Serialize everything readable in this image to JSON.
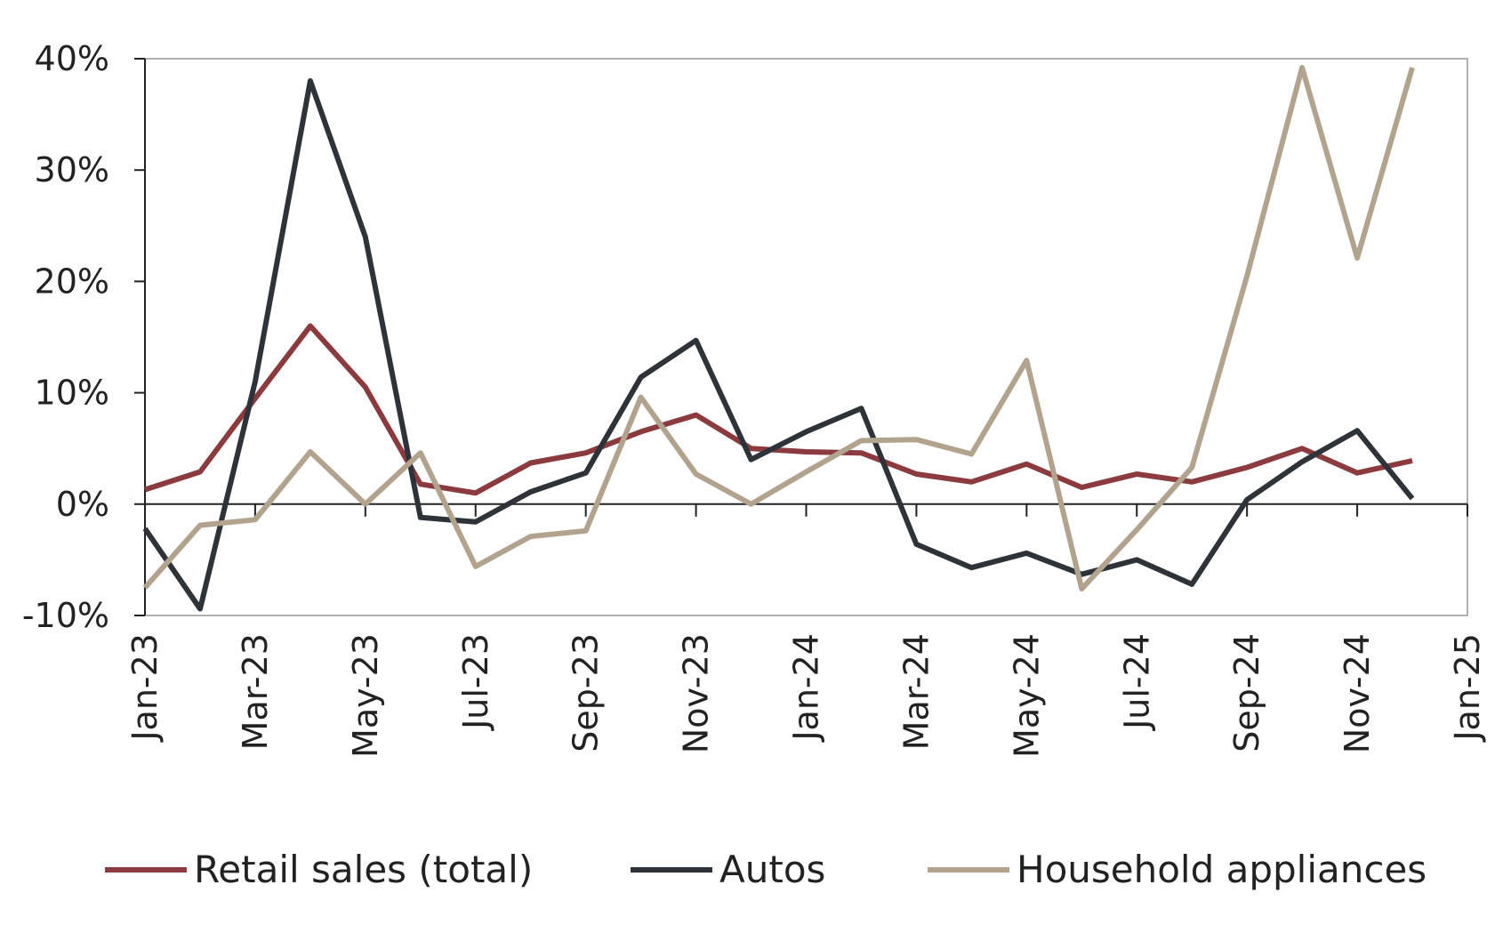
{
  "chart_data": {
    "type": "line",
    "title": "",
    "xlabel": "",
    "ylabel": "",
    "ylim": [
      -10,
      40
    ],
    "yticks": [
      -10,
      0,
      10,
      20,
      30,
      40
    ],
    "ytick_labels": [
      "-10%",
      "0%",
      "10%",
      "20%",
      "30%",
      "40%"
    ],
    "x_tick_labels": [
      "Jan-23",
      "Mar-23",
      "May-23",
      "Jul-23",
      "Sep-23",
      "Nov-23",
      "Jan-24",
      "Mar-24",
      "May-24",
      "Jul-24",
      "Sep-24",
      "Nov-24",
      "Jan-25"
    ],
    "x": [
      "Jan-23",
      "Feb-23",
      "Mar-23",
      "Apr-23",
      "May-23",
      "Jun-23",
      "Jul-23",
      "Aug-23",
      "Sep-23",
      "Oct-23",
      "Nov-23",
      "Dec-23",
      "Jan-24",
      "Feb-24",
      "Mar-24",
      "Apr-24",
      "May-24",
      "Jun-24",
      "Jul-24",
      "Aug-24",
      "Sep-24",
      "Oct-24",
      "Nov-24",
      "Dec-24"
    ],
    "grid": false,
    "legend_position": "bottom",
    "series": [
      {
        "name": "Retail sales (total)",
        "color": "#8b3a3e",
        "values": [
          1.3,
          2.9,
          9.5,
          16.0,
          10.5,
          1.8,
          1.0,
          3.7,
          4.6,
          6.5,
          8.0,
          5.0,
          4.7,
          4.6,
          2.7,
          2.0,
          3.6,
          1.5,
          2.7,
          2.0,
          3.3,
          5.0,
          2.8,
          3.9
        ]
      },
      {
        "name": "Autos",
        "color": "#2d3339",
        "values": [
          -2.2,
          -9.4,
          11.0,
          38.0,
          24.0,
          -1.2,
          -1.6,
          1.1,
          2.8,
          11.4,
          14.7,
          4.0,
          6.5,
          8.6,
          -3.6,
          -5.7,
          -4.4,
          -6.3,
          -5.0,
          -7.2,
          0.4,
          3.8,
          6.6,
          0.5
        ]
      },
      {
        "name": "Household appliances",
        "color": "#b2a38e",
        "values": [
          -7.5,
          -1.9,
          -1.4,
          4.7,
          0.0,
          4.6,
          -5.6,
          -2.9,
          -2.4,
          9.6,
          2.7,
          0.0,
          2.9,
          5.7,
          5.8,
          4.5,
          12.9,
          -7.6,
          -2.3,
          3.3,
          20.5,
          39.2,
          22.1,
          39.2
        ]
      }
    ]
  }
}
